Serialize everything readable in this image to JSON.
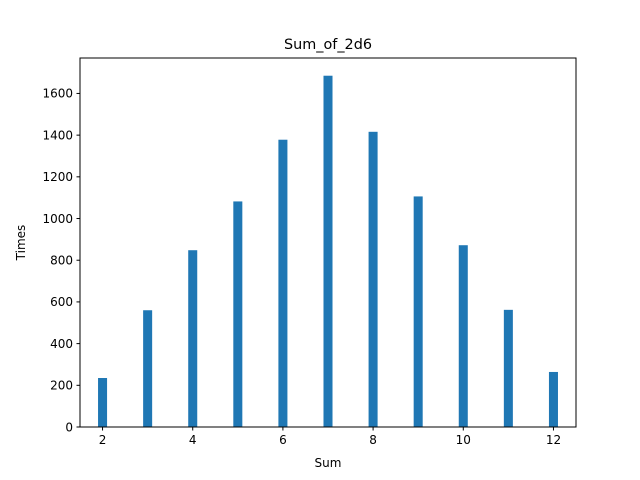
{
  "chart_data": {
    "type": "bar",
    "title": "Sum_of_2d6",
    "xlabel": "Sum",
    "ylabel": "Times",
    "x": [
      2,
      3,
      4,
      5,
      6,
      7,
      8,
      9,
      10,
      11,
      12
    ],
    "values": [
      235,
      560,
      848,
      1082,
      1378,
      1685,
      1416,
      1106,
      872,
      562,
      264
    ],
    "xlim": [
      1.5,
      12.5
    ],
    "ylim": [
      0,
      1770
    ],
    "xticks": [
      2,
      4,
      6,
      8,
      10,
      12
    ],
    "yticks": [
      0,
      200,
      400,
      600,
      800,
      1000,
      1200,
      1400,
      1600
    ],
    "bar_color": "#1f77b4",
    "grid": false,
    "legend": false
  }
}
